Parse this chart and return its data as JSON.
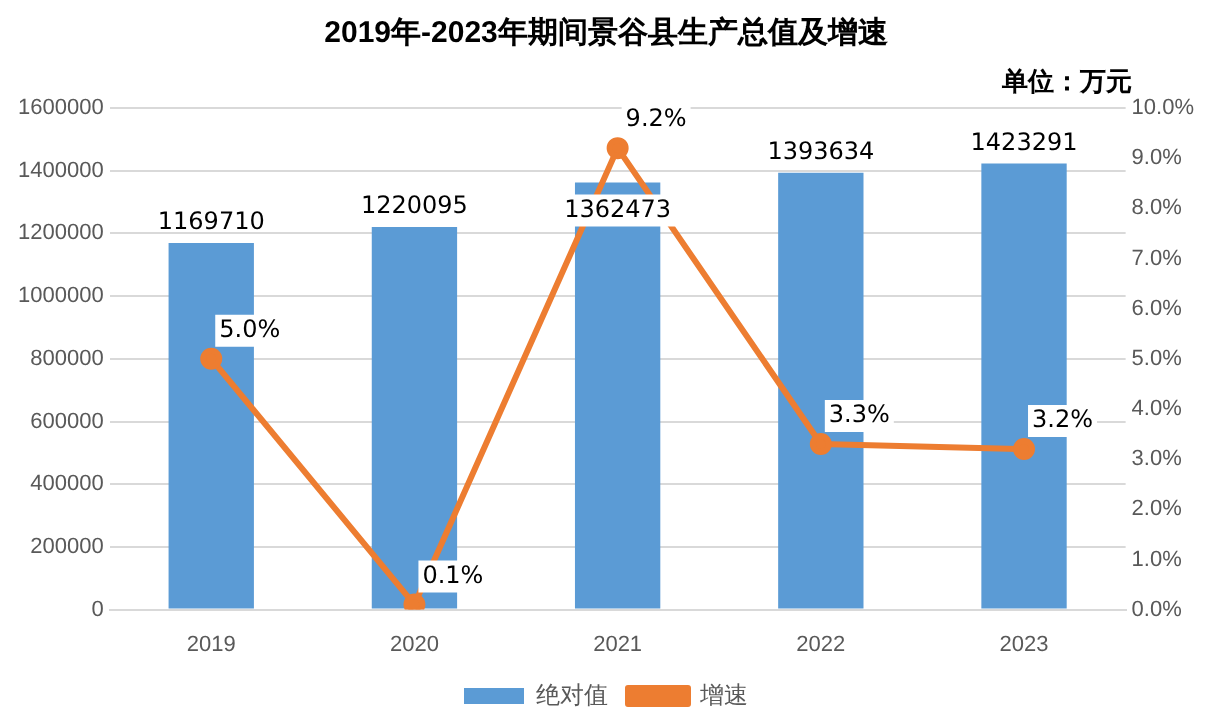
{
  "chart_data": {
    "type": "bar",
    "title": "2019年-2023年期间景谷县生产总值及增速",
    "annotations": [
      "单位：万元"
    ],
    "categories": [
      "2019",
      "2020",
      "2021",
      "2022",
      "2023"
    ],
    "series": [
      {
        "name": "绝对值",
        "color": "#5b9bd5",
        "values": [
          1169710,
          1220095,
          1362473,
          1393634,
          1423291
        ],
        "value_labels": [
          "1169710",
          "1220095",
          "1362473",
          "1393634",
          "1423291"
        ]
      },
      {
        "name": "增速",
        "type": "line",
        "axis": "y2",
        "color": "#ed7d31",
        "values": [
          5.0,
          0.1,
          9.2,
          3.3,
          3.2
        ],
        "value_labels": [
          "5.0%",
          "0.1%",
          "9.2%",
          "3.3%",
          "3.2%"
        ]
      }
    ],
    "ylim": [
      0,
      1600000
    ],
    "yticks": [
      0,
      200000,
      400000,
      600000,
      800000,
      1000000,
      1200000,
      1400000,
      1600000
    ],
    "y2lim": [
      0,
      10
    ],
    "y2ticks": [
      {
        "value": 0,
        "label": "0.0%"
      },
      {
        "value": 1,
        "label": "1.0%"
      },
      {
        "value": 2,
        "label": "2.0%"
      },
      {
        "value": 3,
        "label": "3.0%"
      },
      {
        "value": 4,
        "label": "4.0%"
      },
      {
        "value": 5,
        "label": "5.0%"
      },
      {
        "value": 6,
        "label": "6.0%"
      },
      {
        "value": 7,
        "label": "7.0%"
      },
      {
        "value": 8,
        "label": "8.0%"
      },
      {
        "value": 9,
        "label": "9.0%"
      },
      {
        "value": 10,
        "label": "10.0%"
      }
    ],
    "grid": "y",
    "legend": "bottom",
    "marker": "circle",
    "line_style": "solid"
  }
}
